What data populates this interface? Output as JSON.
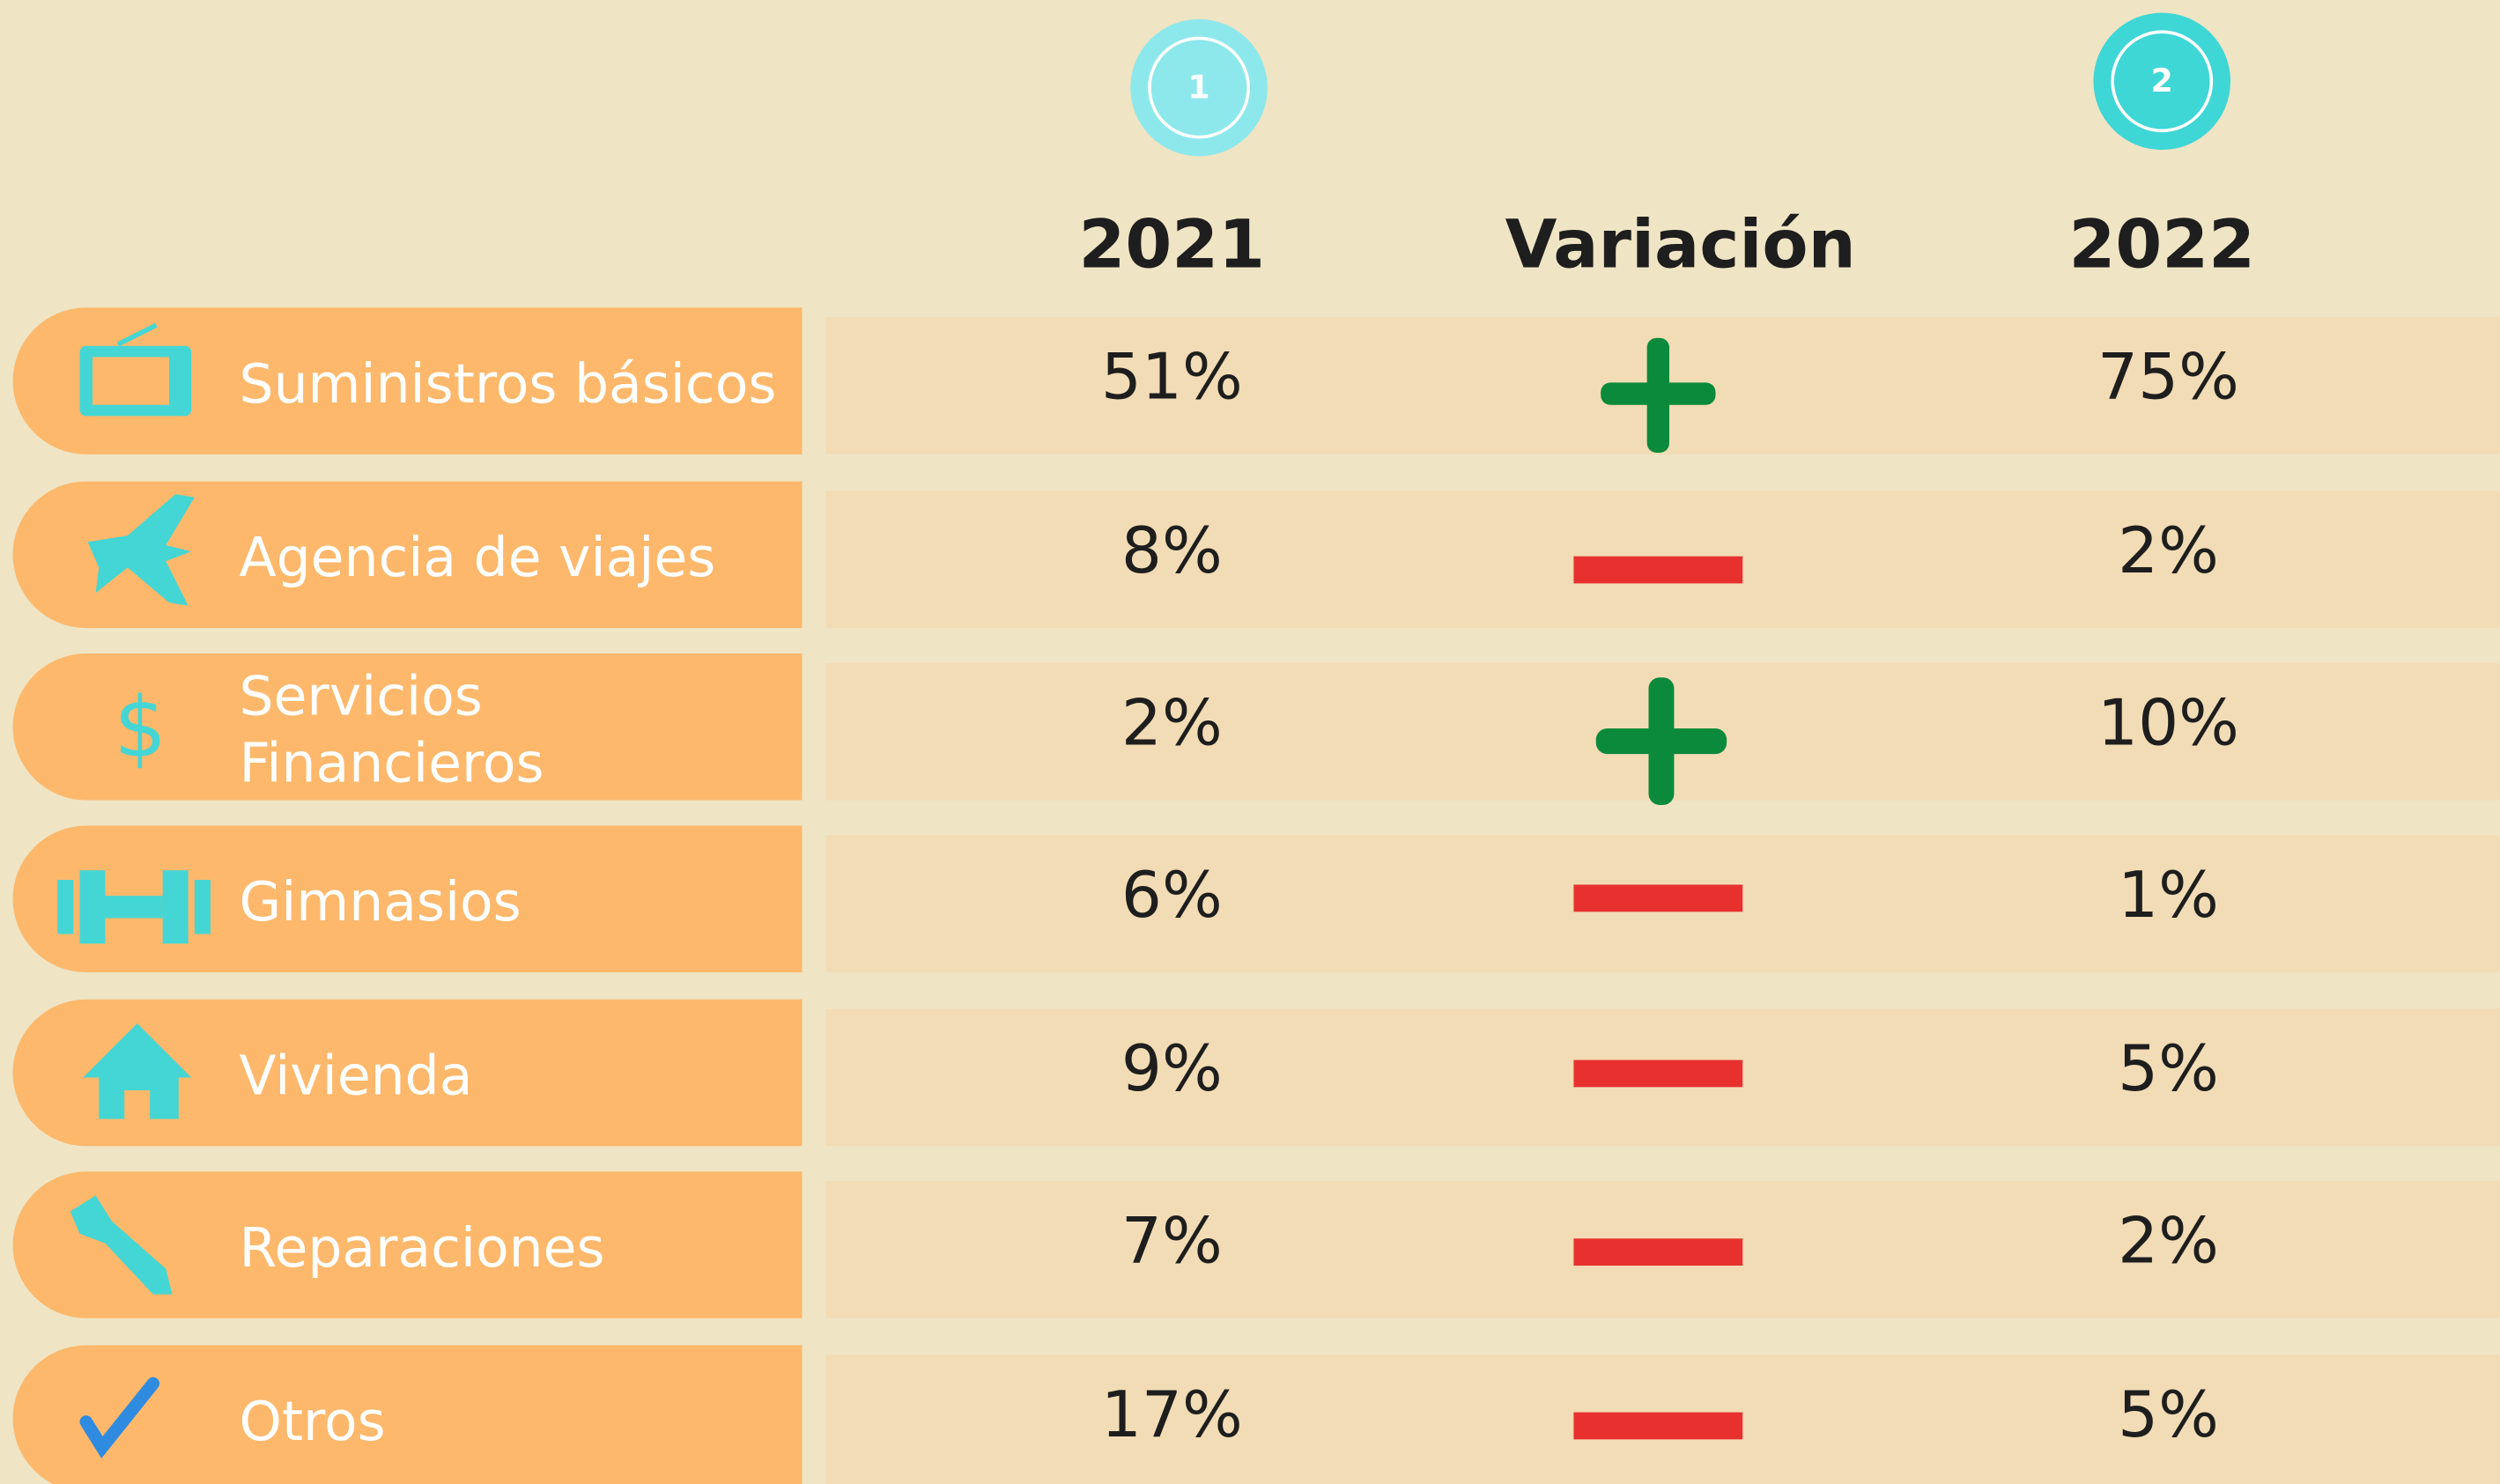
{
  "header": {
    "badges": [
      "1",
      "2"
    ],
    "columns": [
      "2021",
      "Variación",
      "2022"
    ]
  },
  "table": {
    "rows": [
      {
        "label": [
          "Suministros básicos"
        ],
        "v2021": "51%",
        "v2022": "75%"
      },
      {
        "label": [
          "Agencia de viajes"
        ],
        "v2021": "8%",
        "v2022": "2%"
      },
      {
        "label": [
          "Servicios",
          "Financieros"
        ],
        "v2021": "2%",
        "v2022": "10%"
      },
      {
        "label": [
          "Gimnasios"
        ],
        "v2021": "6%",
        "v2022": "1%"
      },
      {
        "label": [
          "Vivienda"
        ],
        "v2021": "9%",
        "v2022": "5%"
      },
      {
        "label": [
          "Reparaciones"
        ],
        "v2021": "7%",
        "v2022": "2%"
      },
      {
        "label": [
          "Otros"
        ],
        "v2021": "17%",
        "v2022": "5%"
      }
    ]
  }
}
